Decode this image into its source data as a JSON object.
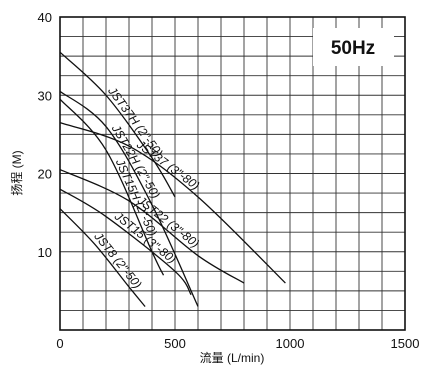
{
  "chart_data": {
    "type": "line",
    "badge": "50Hz",
    "xlabel": "流量 (L/min)",
    "ylabel": "扬程 (M)",
    "xlim": [
      0,
      1500
    ],
    "ylim": [
      0,
      40
    ],
    "xticks": [
      "0",
      "500",
      "1000",
      "1500"
    ],
    "yticks": [
      "10",
      "20",
      "30",
      "40"
    ],
    "grid": true,
    "series": [
      {
        "name": "JST37H (2\"-50)",
        "x": [
          0,
          200,
          400,
          500
        ],
        "y": [
          35.5,
          30,
          22,
          17
        ]
      },
      {
        "name": "JST22H (2\"-50)",
        "x": [
          0,
          200,
          400,
          600
        ],
        "y": [
          30.5,
          26,
          16,
          3
        ]
      },
      {
        "name": "JST15H (2\"-50)",
        "x": [
          0,
          200,
          400,
          450
        ],
        "y": [
          29.5,
          23,
          10,
          7
        ]
      },
      {
        "name": "JST37 (3\"-80)",
        "x": [
          0,
          300,
          600,
          980
        ],
        "y": [
          26.5,
          23.5,
          17,
          6
        ]
      },
      {
        "name": "JST22 (3\"-80)",
        "x": [
          0,
          300,
          600,
          800
        ],
        "y": [
          20.5,
          16.5,
          9.5,
          6
        ]
      },
      {
        "name": "JST15 (3\"-80)",
        "x": [
          0,
          200,
          500,
          570
        ],
        "y": [
          18,
          14.5,
          7.5,
          4.5
        ]
      },
      {
        "name": "JST8 (2\"-50)",
        "x": [
          0,
          150,
          300,
          370
        ],
        "y": [
          15.5,
          11,
          5.5,
          3
        ]
      }
    ]
  }
}
